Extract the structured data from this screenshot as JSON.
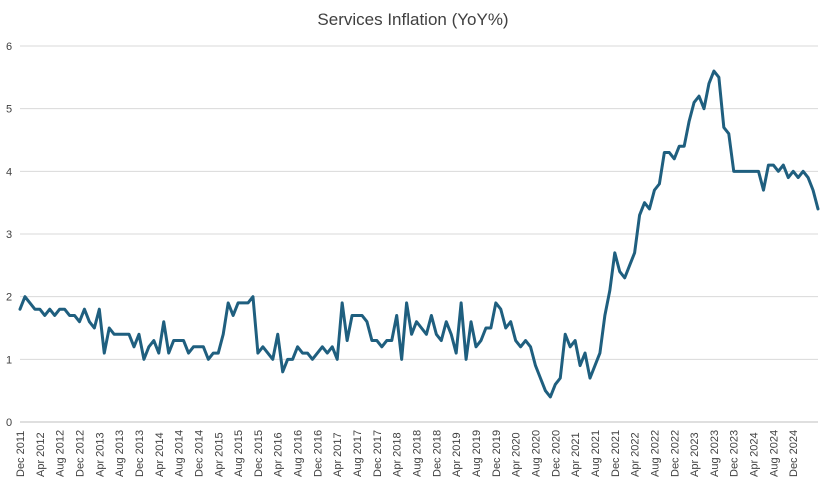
{
  "chart_data": {
    "type": "line",
    "title": "Services Inflation (YoY%)",
    "xlabel": "",
    "ylabel": "",
    "ylim": [
      0,
      6
    ],
    "yticks": [
      "0",
      "1",
      "2",
      "3",
      "4",
      "5",
      "6"
    ],
    "grid": true,
    "legend": "none",
    "colors": {
      "series": "#1f5f7f",
      "grid": "#d9d9d9",
      "text": "#404040"
    },
    "xtick_labels": [
      "Dec 2011",
      "Apr 2012",
      "Aug 2012",
      "Dec 2012",
      "Apr 2013",
      "Aug 2013",
      "Dec 2013",
      "Apr 2014",
      "Aug 2014",
      "Dec 2014",
      "Apr 2015",
      "Aug 2015",
      "Dec 2015",
      "Apr 2016",
      "Aug 2016",
      "Dec 2016",
      "Apr 2017",
      "Aug 2017",
      "Dec 2017",
      "Apr 2018",
      "Aug 2018",
      "Dec 2018",
      "Apr 2019",
      "Aug 2019",
      "Dec 2019",
      "Apr 2020",
      "Aug 2020",
      "Dec 2020",
      "Apr 2021",
      "Aug 2021",
      "Dec 2021",
      "Apr 2022",
      "Aug 2022",
      "Dec 2022",
      "Apr 2023",
      "Aug 2023",
      "Dec 2023",
      "Apr 2024",
      "Aug 2024",
      "Dec 2024"
    ],
    "x_start": "Dec 2011",
    "x_end": "Mar 2025",
    "series": [
      {
        "values": [
          1.8,
          2.0,
          1.9,
          1.8,
          1.8,
          1.7,
          1.8,
          1.7,
          1.8,
          1.8,
          1.7,
          1.7,
          1.6,
          1.8,
          1.6,
          1.5,
          1.8,
          1.1,
          1.5,
          1.4,
          1.4,
          1.4,
          1.4,
          1.2,
          1.4,
          1.0,
          1.2,
          1.3,
          1.1,
          1.6,
          1.1,
          1.3,
          1.3,
          1.3,
          1.1,
          1.2,
          1.2,
          1.2,
          1.0,
          1.1,
          1.1,
          1.4,
          1.9,
          1.7,
          1.9,
          1.9,
          1.9,
          2.0,
          1.1,
          1.2,
          1.1,
          1.0,
          1.4,
          0.8,
          1.0,
          1.0,
          1.2,
          1.1,
          1.1,
          1.0,
          1.1,
          1.2,
          1.1,
          1.2,
          1.0,
          1.9,
          1.3,
          1.7,
          1.7,
          1.7,
          1.6,
          1.3,
          1.3,
          1.2,
          1.3,
          1.3,
          1.7,
          1.0,
          1.9,
          1.4,
          1.6,
          1.5,
          1.4,
          1.7,
          1.4,
          1.3,
          1.6,
          1.4,
          1.1,
          1.9,
          1.0,
          1.6,
          1.2,
          1.3,
          1.5,
          1.5,
          1.9,
          1.8,
          1.5,
          1.6,
          1.3,
          1.2,
          1.3,
          1.2,
          0.9,
          0.7,
          0.5,
          0.4,
          0.6,
          0.7,
          1.4,
          1.2,
          1.3,
          0.9,
          1.1,
          0.7,
          0.9,
          1.1,
          1.7,
          2.1,
          2.7,
          2.4,
          2.3,
          2.5,
          2.7,
          3.3,
          3.5,
          3.4,
          3.7,
          3.8,
          4.3,
          4.3,
          4.2,
          4.4,
          4.4,
          4.8,
          5.1,
          5.2,
          5.0,
          5.4,
          5.6,
          5.5,
          4.7,
          4.6,
          4.0,
          4.0,
          4.0,
          4.0,
          4.0,
          4.0,
          3.7,
          4.1,
          4.1,
          4.0,
          4.1,
          3.9,
          4.0,
          3.9,
          4.0,
          3.9,
          3.7,
          3.4
        ]
      }
    ]
  }
}
